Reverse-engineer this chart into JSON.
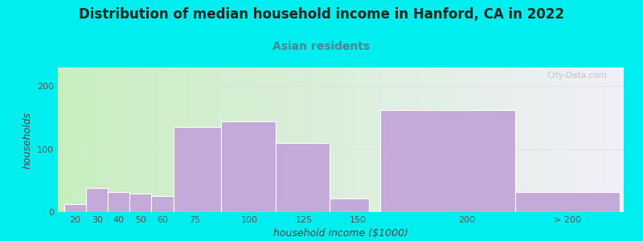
{
  "title": "Distribution of median household income in Hanford, CA in 2022",
  "subtitle": "Asian residents",
  "xlabel": "household income ($1000)",
  "ylabel": "households",
  "bg_outer": "#00EEEE",
  "bg_inner_left": "#d4f0d0",
  "bg_inner_right": "#e8e8f0",
  "bar_color": "#c4aad8",
  "bar_edge_color": "#c4aad8",
  "categories": [
    "20",
    "30",
    "40",
    "50",
    "60",
    "75",
    "100",
    "125",
    "150",
    "200",
    "> 200"
  ],
  "values": [
    13,
    38,
    32,
    30,
    25,
    135,
    145,
    110,
    22,
    162,
    32
  ],
  "bar_left_edges": [
    15,
    25,
    35,
    45,
    55,
    65,
    87,
    112,
    137,
    160,
    222
  ],
  "bar_right_edges": [
    25,
    35,
    45,
    55,
    65,
    87,
    112,
    137,
    155,
    222,
    270
  ],
  "xtick_labels": [
    "20",
    "30",
    "40",
    "50",
    "60",
    "75",
    "100",
    "125",
    "150",
    "200",
    "> 200"
  ],
  "xtick_positions": [
    20,
    30,
    40,
    50,
    60,
    75,
    100,
    125,
    150,
    200,
    246
  ],
  "ylim": [
    0,
    230
  ],
  "yticks": [
    0,
    100,
    200
  ],
  "title_fontsize": 12,
  "subtitle_fontsize": 10,
  "axis_label_fontsize": 9,
  "tick_fontsize": 8,
  "watermark": "City-Data.com"
}
